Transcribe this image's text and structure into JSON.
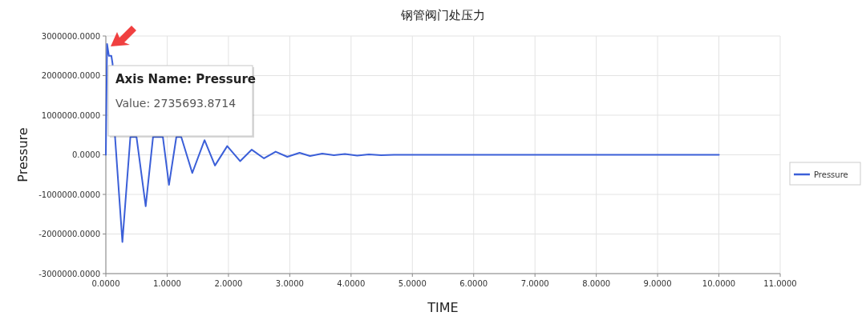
{
  "chart_data": {
    "type": "line",
    "title": "钢管阀门处压力",
    "xlabel": "TIME",
    "ylabel": "Pressure",
    "xlim": [
      0,
      11
    ],
    "ylim": [
      -3000000,
      3000000
    ],
    "xticks": [
      {
        "value": 0,
        "label": "0.0000"
      },
      {
        "value": 1,
        "label": "1.0000"
      },
      {
        "value": 2,
        "label": "2.0000"
      },
      {
        "value": 3,
        "label": "3.0000"
      },
      {
        "value": 4,
        "label": "4.0000"
      },
      {
        "value": 5,
        "label": "5.0000"
      },
      {
        "value": 6,
        "label": "6.0000"
      },
      {
        "value": 7,
        "label": "7.0000"
      },
      {
        "value": 8,
        "label": "8.0000"
      },
      {
        "value": 9,
        "label": "9.0000"
      },
      {
        "value": 10,
        "label": "10.0000"
      },
      {
        "value": 11,
        "label": "11.0000"
      }
    ],
    "yticks": [
      {
        "value": -3000000,
        "label": "-3000000.0000"
      },
      {
        "value": -2000000,
        "label": "-2000000.0000"
      },
      {
        "value": -1000000,
        "label": "-1000000.0000"
      },
      {
        "value": 0,
        "label": "0.0000"
      },
      {
        "value": 1000000,
        "label": "1000000.0000"
      },
      {
        "value": 2000000,
        "label": "2000000.0000"
      },
      {
        "value": 3000000,
        "label": "3000000.0000"
      }
    ],
    "grid": true,
    "legend": "right",
    "marker": "none",
    "line_style": "solid",
    "annotations": [
      "Axis Name: Pressure",
      "Value: 2735693.8714"
    ],
    "series": [
      {
        "name": "Pressure",
        "color": "#3b5fd8",
        "x": [
          0,
          0.02,
          0.05,
          0.09,
          0.11,
          0.15,
          0.27,
          0.4,
          0.5,
          0.65,
          0.77,
          0.93,
          1.03,
          1.15,
          1.23,
          1.41,
          1.61,
          1.78,
          1.98,
          2.19,
          2.38,
          2.58,
          2.77,
          2.96,
          3.16,
          3.33,
          3.53,
          3.72,
          3.9,
          4.1,
          4.29,
          4.49,
          4.7,
          5,
          6,
          7,
          8,
          9,
          10
        ],
        "values": [
          0,
          2800000,
          2500000,
          2500000,
          2300000,
          450000,
          -2200000,
          450000,
          450000,
          -1300000,
          450000,
          450000,
          -760000,
          450000,
          450000,
          -460000,
          370000,
          -270000,
          220000,
          -160000,
          130000,
          -90000,
          80000,
          -50000,
          50000,
          -30000,
          30000,
          -10000,
          20000,
          -20000,
          10000,
          -10000,
          0,
          0,
          0,
          0,
          0,
          0,
          0
        ]
      }
    ]
  }
}
